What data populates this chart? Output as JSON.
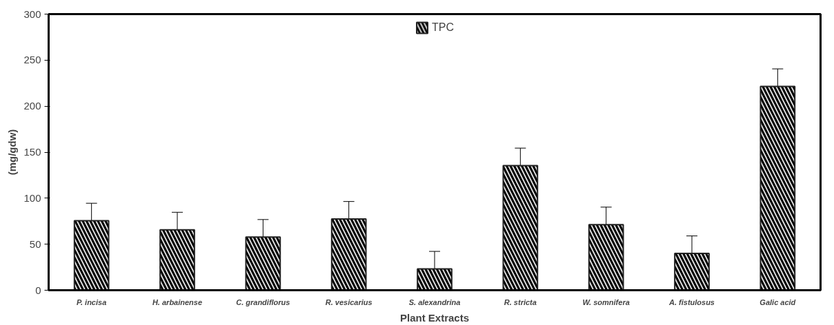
{
  "chart_data": {
    "type": "bar",
    "xlabel": "Plant Extracts",
    "ylabel": "(mg/gdw)",
    "categories": [
      "P. incisa",
      "H. arbainense",
      "C. grandiflorus",
      "R. vesicarius",
      "S. alexandrina",
      "R. stricta",
      "W. somnifera",
      "A. fistulosus",
      "Galic acid"
    ],
    "series": [
      {
        "name": "TPC",
        "color": "#e0e0e0",
        "values": [
          75.5,
          65.7,
          57.8,
          77.4,
          23.2,
          135.4,
          71.3,
          40,
          221.5
        ],
        "errors": [
          19,
          19,
          19,
          19,
          19,
          19,
          19,
          19,
          19
        ]
      }
    ],
    "ylim": [
      0,
      300
    ],
    "yticks": [
      0,
      50,
      100,
      150,
      200,
      250,
      300
    ],
    "grid": false,
    "legend": "top"
  }
}
